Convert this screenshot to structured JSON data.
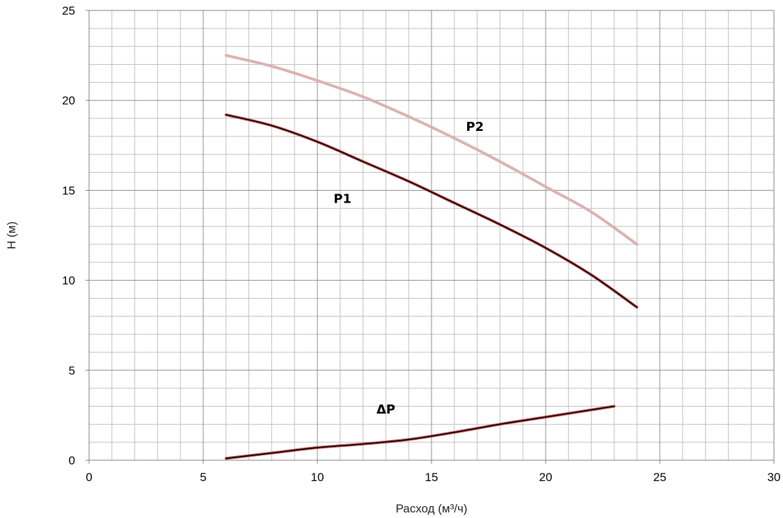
{
  "chart_data": {
    "type": "line",
    "xlabel": "Расход (м³/ч)",
    "ylabel": "H (м)",
    "xlim": [
      0,
      30
    ],
    "ylim": [
      0,
      25
    ],
    "x_ticks": [
      "0",
      "5",
      "10",
      "15",
      "20",
      "25",
      "30"
    ],
    "y_ticks": [
      "0",
      "5",
      "10",
      "15",
      "20",
      "25"
    ],
    "grid": true,
    "legend": "none",
    "series": [
      {
        "name": "P2",
        "color": "#dbb2b0",
        "x": [
          6,
          8,
          10,
          12,
          14,
          16,
          18,
          20,
          22,
          24
        ],
        "y": [
          22.5,
          21.9,
          21.1,
          20.2,
          19.1,
          17.9,
          16.6,
          15.2,
          13.8,
          12.0
        ]
      },
      {
        "name": "P1",
        "color": "#000000",
        "x": [
          6,
          8,
          10,
          12,
          14,
          16,
          18,
          20,
          22,
          24
        ],
        "y": [
          19.2,
          18.6,
          17.7,
          16.6,
          15.5,
          14.3,
          13.1,
          11.8,
          10.3,
          8.5
        ]
      },
      {
        "name": "ΔP",
        "color": "#000000",
        "x": [
          6,
          8,
          10,
          12,
          14,
          16,
          18,
          20,
          23
        ],
        "y": [
          0.1,
          0.4,
          0.7,
          0.9,
          1.15,
          1.55,
          2.0,
          2.4,
          3.0
        ]
      }
    ],
    "labels": [
      {
        "text": "P2",
        "x": 16.9,
        "y": 18.3
      },
      {
        "text": "P1",
        "x": 11.1,
        "y": 14.3
      },
      {
        "text": "ΔP",
        "x": 13.0,
        "y": 2.6
      }
    ]
  }
}
